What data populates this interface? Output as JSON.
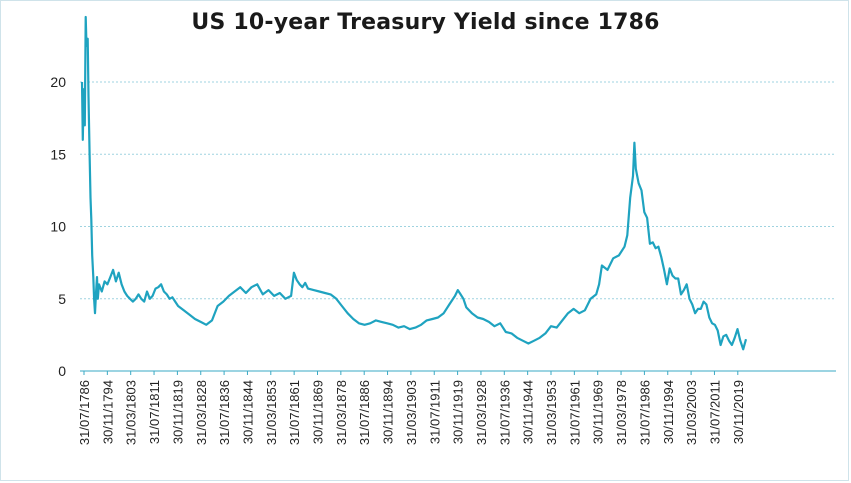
{
  "chart_data": {
    "type": "line",
    "title": "US 10-year Treasury Yield since 1786",
    "xlabel": "",
    "ylabel": "",
    "ylim": [
      0,
      25
    ],
    "yticks": [
      "0",
      "5",
      "10",
      "15",
      "20"
    ],
    "grid": true,
    "x_tick_labels": [
      "31/07/1786",
      "30/11/1794",
      "31/03/1803",
      "31/07/1811",
      "30/11/1819",
      "31/03/1828",
      "31/07/1836",
      "30/11/1844",
      "31/03/1853",
      "31/07/1861",
      "30/11/1869",
      "31/03/1878",
      "31/07/1886",
      "30/11/1894",
      "31/03/1903",
      "31/07/1911",
      "30/11/1919",
      "31/03/1928",
      "31/07/1936",
      "30/11/1944",
      "31/03/1953",
      "31/07/1961",
      "30/11/1969",
      "31/03/1978",
      "31/07/1986",
      "30/11/1994",
      "31/03/2003",
      "31/07/2011",
      "30/11/2019"
    ],
    "series": [
      {
        "color": "#1fa3c0",
        "x": [
          1786.0,
          1786.3,
          1786.6,
          1787.0,
          1787.3,
          1787.6,
          1788.0,
          1788.3,
          1788.7,
          1789.0,
          1789.3,
          1789.6,
          1790.0,
          1790.3,
          1790.6,
          1791.0,
          1791.3,
          1791.6,
          1792.0,
          1793,
          1794,
          1795,
          1796,
          1797,
          1798,
          1799,
          1800,
          1801,
          1802,
          1803,
          1804,
          1805,
          1806,
          1807,
          1808,
          1809,
          1810,
          1811,
          1812,
          1813,
          1814,
          1815,
          1816,
          1817,
          1818,
          1819,
          1820,
          1822,
          1824,
          1826,
          1828,
          1830,
          1832,
          1834,
          1836,
          1838,
          1840,
          1842,
          1844,
          1846,
          1848,
          1850,
          1852,
          1854,
          1856,
          1858,
          1860,
          1861,
          1862,
          1863,
          1864,
          1865,
          1866,
          1868,
          1870,
          1872,
          1874,
          1876,
          1878,
          1880,
          1882,
          1884,
          1886,
          1888,
          1890,
          1892,
          1894,
          1896,
          1898,
          1900,
          1902,
          1904,
          1906,
          1908,
          1910,
          1912,
          1914,
          1916,
          1918,
          1919,
          1920,
          1921,
          1922,
          1924,
          1926,
          1928,
          1930,
          1932,
          1934,
          1936,
          1938,
          1940,
          1942,
          1944,
          1946,
          1948,
          1950,
          1952,
          1954,
          1956,
          1958,
          1960,
          1962,
          1964,
          1966,
          1968,
          1969,
          1970,
          1972,
          1974,
          1976,
          1978,
          1979,
          1980,
          1981,
          1981.5,
          1982,
          1983,
          1984,
          1985,
          1986,
          1987,
          1988,
          1989,
          1990,
          1991,
          1992,
          1993,
          1994,
          1995,
          1996,
          1997,
          1998,
          1999,
          2000,
          2001,
          2002,
          2003,
          2004,
          2005,
          2006,
          2007,
          2008,
          2009,
          2010,
          2011,
          2012,
          2013,
          2014,
          2015,
          2016,
          2017,
          2018,
          2019,
          2020,
          2021
        ],
        "values": [
          20.0,
          16.0,
          19.5,
          17.0,
          24.5,
          22.5,
          23.0,
          19.0,
          15.0,
          12.0,
          10.5,
          8.0,
          6.5,
          5.0,
          4.0,
          5.5,
          6.5,
          5.0,
          6.0,
          5.5,
          6.2,
          6.0,
          6.5,
          7.0,
          6.2,
          6.8,
          6.0,
          5.5,
          5.2,
          5.0,
          4.8,
          5.0,
          5.3,
          5.0,
          4.8,
          5.5,
          5.0,
          5.2,
          5.7,
          5.8,
          6.0,
          5.5,
          5.3,
          5.0,
          5.1,
          4.8,
          4.5,
          4.2,
          3.9,
          3.6,
          3.4,
          3.2,
          3.5,
          4.5,
          4.8,
          5.2,
          5.5,
          5.8,
          5.4,
          5.8,
          6.0,
          5.3,
          5.6,
          5.2,
          5.4,
          5.0,
          5.2,
          6.8,
          6.3,
          6.0,
          5.8,
          6.1,
          5.7,
          5.6,
          5.5,
          5.4,
          5.3,
          5.0,
          4.5,
          4.0,
          3.6,
          3.3,
          3.2,
          3.3,
          3.5,
          3.4,
          3.3,
          3.2,
          3.0,
          3.1,
          2.9,
          3.0,
          3.2,
          3.5,
          3.6,
          3.7,
          4.0,
          4.6,
          5.2,
          5.6,
          5.3,
          5.0,
          4.4,
          4.0,
          3.7,
          3.6,
          3.4,
          3.1,
          3.3,
          2.7,
          2.6,
          2.3,
          2.1,
          1.9,
          2.1,
          2.3,
          2.6,
          3.1,
          3.0,
          3.5,
          4.0,
          4.3,
          4.0,
          4.2,
          5.0,
          5.3,
          6.0,
          7.3,
          7.0,
          7.8,
          8.0,
          8.6,
          9.4,
          12.0,
          13.5,
          15.8,
          14.0,
          13.0,
          12.5,
          11.0,
          10.6,
          8.8,
          8.9,
          8.5,
          8.6,
          7.9,
          7.0,
          6.0,
          7.1,
          6.6,
          6.4,
          6.4,
          5.3,
          5.6,
          6.0,
          5.0,
          4.6,
          4.0,
          4.3,
          4.3,
          4.8,
          4.6,
          3.7,
          3.3,
          3.2,
          2.8,
          1.8,
          2.4,
          2.5,
          2.1,
          1.8,
          2.3,
          2.9,
          2.1,
          1.5,
          2.2
        ]
      }
    ]
  }
}
